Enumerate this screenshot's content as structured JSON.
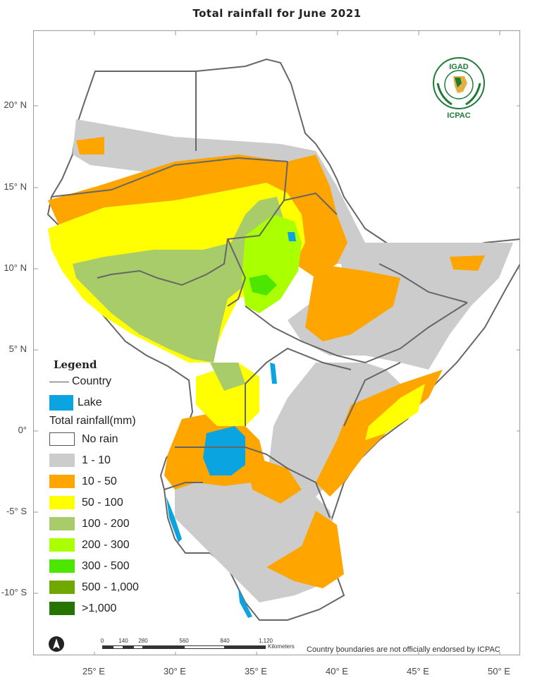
{
  "map": {
    "title": "Total rainfall for  June  2021",
    "latitude_ticks": [
      "20° N",
      "15° N",
      "10° N",
      "5° N",
      "0°",
      "-5° S",
      "-10° S"
    ],
    "longitude_ticks": [
      "25° E",
      "30° E",
      "35° E",
      "40° E",
      "45° E",
      "50° E"
    ],
    "disclaimer": "Country boundaries are not officially endorsed by ICPAC"
  },
  "logo": {
    "top_text": "IGAD",
    "bottom_text": "ICPAC"
  },
  "legend": {
    "title": "Legend",
    "country_label": "Country",
    "lake_label": "Lake",
    "lake_color": "#0aa4e0",
    "rainfall_title": "Total rainfall(mm)",
    "classes": [
      {
        "label": "No rain",
        "color": "#ffffff"
      },
      {
        "label": "1 - 10",
        "color": "#cccccc"
      },
      {
        "label": "10 - 50",
        "color": "#ffa500"
      },
      {
        "label": "50 - 100",
        "color": "#ffff00"
      },
      {
        "label": "100 - 200",
        "color": "#a8cc6a"
      },
      {
        "label": "200 - 300",
        "color": "#aaff00"
      },
      {
        "label": "300 - 500",
        "color": "#4ce600"
      },
      {
        "label": "500 - 1,000",
        "color": "#71a800"
      },
      {
        "label": ">1,000",
        "color": "#267300"
      }
    ]
  },
  "scale_bar": {
    "labels": [
      "0",
      "140",
      "280",
      "560",
      "840",
      "1,120"
    ],
    "unit": "Kilometers"
  }
}
